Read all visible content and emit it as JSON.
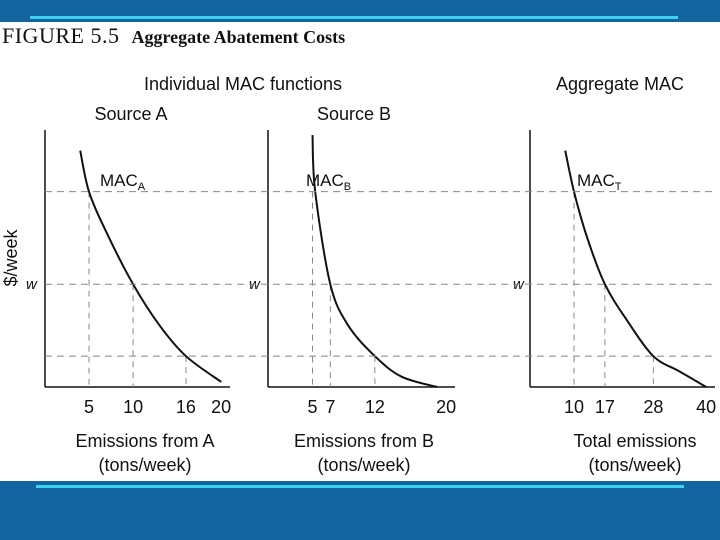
{
  "figure": {
    "number": "FIGURE 5.5",
    "title": "Aggregate Abatement Costs"
  },
  "group_labels": {
    "individual": "Individual MAC functions",
    "aggregate": "Aggregate MAC"
  },
  "colors": {
    "band": "#1464a0",
    "band_line": "#3ed0f0",
    "curve": "#111111",
    "guide": "#888888"
  },
  "chart_data": [
    {
      "type": "line",
      "title": "Source A",
      "ylabel": "$/week",
      "xlabel": [
        "Emissions from A",
        "(tons/week)"
      ],
      "xlim": [
        0,
        21
      ],
      "ylim": [
        0,
        1
      ],
      "xticks": [
        "5",
        "10",
        "16",
        "20"
      ],
      "xtick_values": [
        5,
        10,
        16,
        20
      ],
      "series": [
        {
          "name": "MAC",
          "subscript": "A",
          "x": [
            4,
            5,
            7,
            10,
            13,
            16,
            20
          ],
          "y": [
            0.92,
            0.76,
            0.6,
            0.4,
            0.24,
            0.12,
            0.02
          ]
        }
      ],
      "guides": [
        {
          "x": 5,
          "y": 0.76
        },
        {
          "x": 10,
          "y": 0.4
        },
        {
          "x": 16,
          "y": 0.12
        }
      ],
      "price_label": "w",
      "price_y": 0.4
    },
    {
      "type": "line",
      "title": "Source B",
      "ylabel": "",
      "xlabel": [
        "Emissions from B",
        "(tons/week)"
      ],
      "xlim": [
        0,
        21
      ],
      "ylim": [
        0,
        1
      ],
      "xticks": [
        "5",
        "7",
        "12",
        "20"
      ],
      "xtick_values": [
        5,
        7,
        12,
        20
      ],
      "series": [
        {
          "name": "MAC",
          "subscript": "B",
          "x": [
            5,
            5.3,
            7,
            9,
            12,
            15,
            19
          ],
          "y": [
            0.98,
            0.76,
            0.4,
            0.24,
            0.12,
            0.04,
            0
          ]
        }
      ],
      "guides": [
        {
          "x": 5,
          "y": 0.76
        },
        {
          "x": 7,
          "y": 0.4
        },
        {
          "x": 12,
          "y": 0.12
        }
      ],
      "price_label": "w",
      "price_y": 0.4
    },
    {
      "type": "line",
      "title": "Aggregate MAC",
      "ylabel": "",
      "xlabel": [
        "Total emissions",
        "(tons/week)"
      ],
      "xlim": [
        0,
        42
      ],
      "ylim": [
        0,
        1
      ],
      "xticks": [
        "10",
        "17",
        "28",
        "40"
      ],
      "xtick_values": [
        10,
        17,
        28,
        40
      ],
      "series": [
        {
          "name": "MAC",
          "subscript": "T",
          "x": [
            8,
            10,
            13,
            17,
            22,
            28,
            34,
            40
          ],
          "y": [
            0.92,
            0.76,
            0.58,
            0.4,
            0.26,
            0.12,
            0.06,
            0
          ]
        }
      ],
      "guides": [
        {
          "x": 10,
          "y": 0.76
        },
        {
          "x": 17,
          "y": 0.4
        },
        {
          "x": 28,
          "y": 0.12
        }
      ],
      "price_label": "w",
      "price_y": 0.4
    }
  ]
}
